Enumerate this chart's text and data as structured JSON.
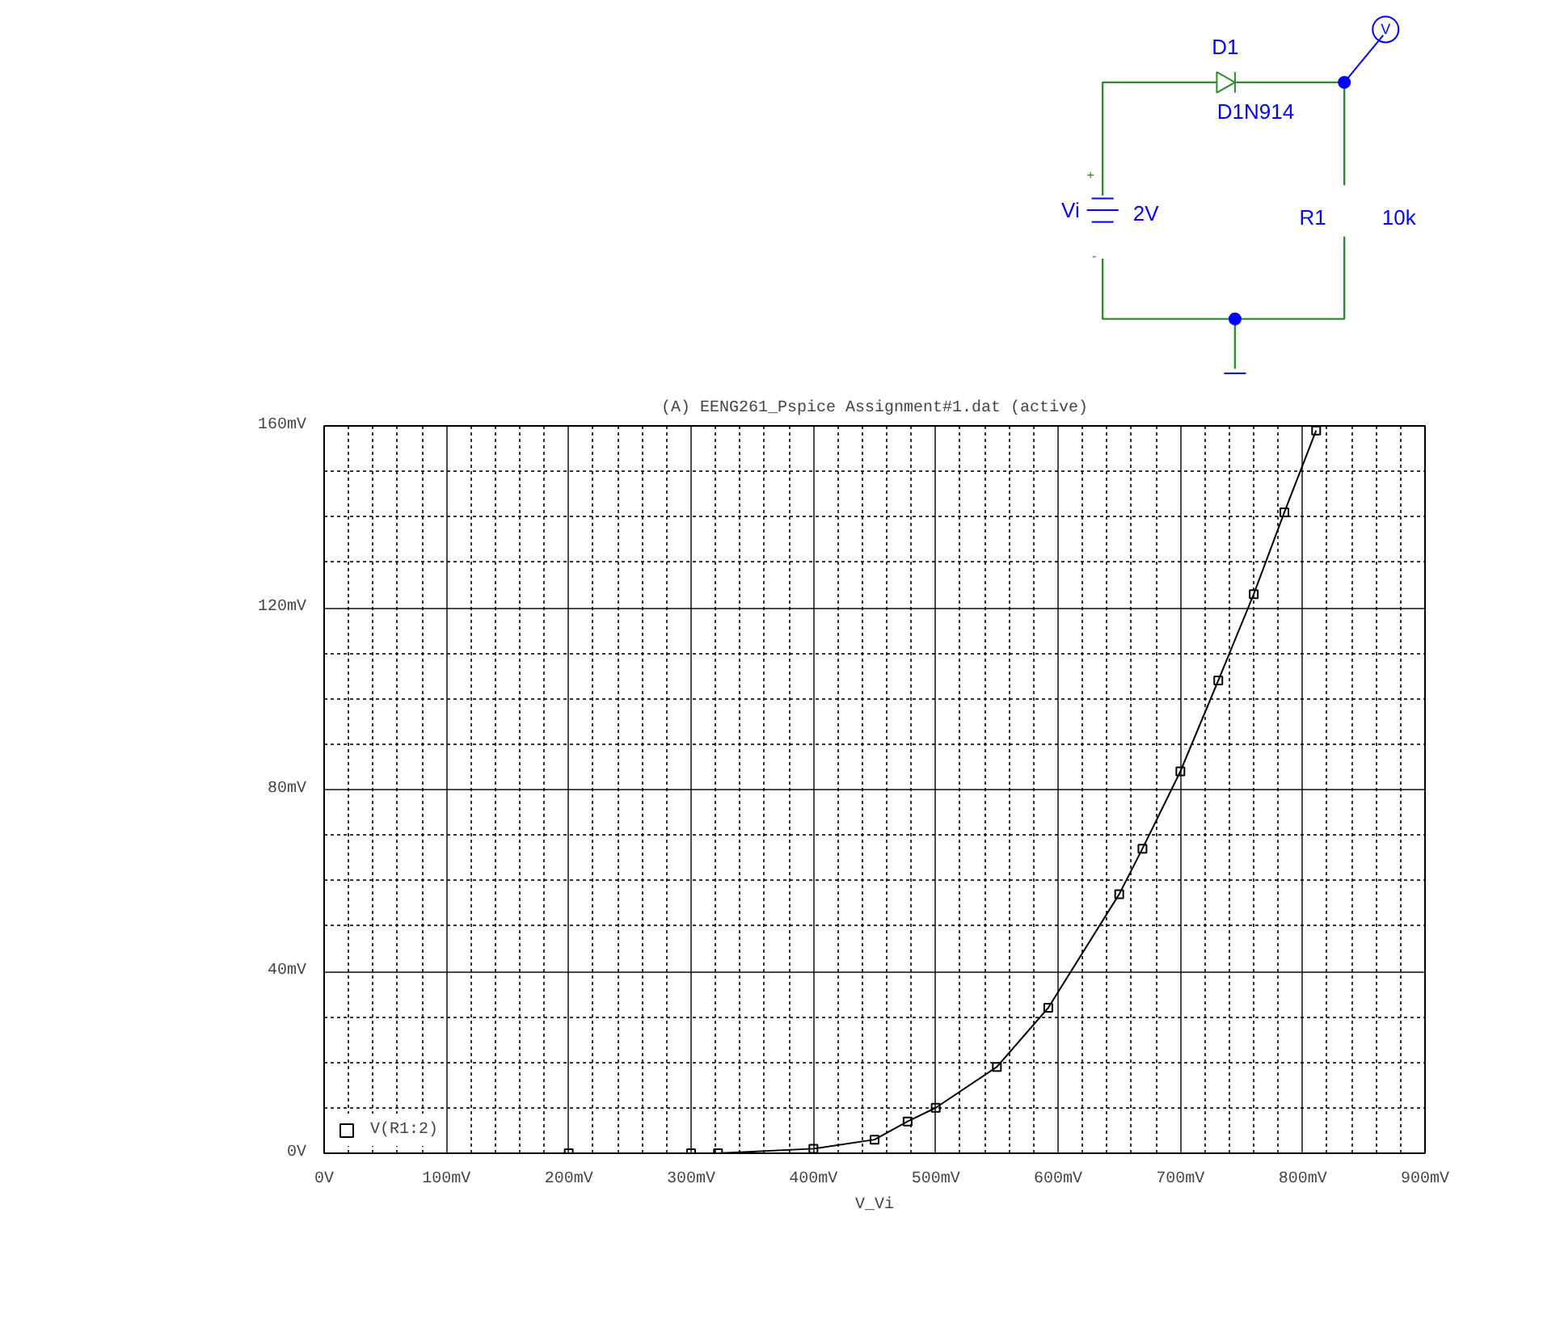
{
  "chart_data": {
    "type": "line",
    "title": "(A) EENG261_Pspice Assignment#1.dat (active)",
    "xlabel": "V_Vi",
    "annotations": [
      "D1",
      "D1N914",
      "Vi",
      "2V",
      "R1",
      "10k",
      "V",
      "+",
      "-"
    ],
    "x": [
      200,
      300,
      322,
      400,
      450,
      477,
      500,
      550,
      592,
      650,
      669,
      700,
      731,
      760,
      785,
      811
    ],
    "series": [
      {
        "name": "V(R1:2)",
        "color": "#000000",
        "values": [
          0,
          0,
          0,
          1,
          3,
          7,
          10,
          19,
          32,
          57,
          67,
          84,
          104,
          123,
          141,
          159
        ]
      }
    ],
    "xlim": [
      0,
      900
    ],
    "ylim": [
      0,
      160
    ],
    "xticks": [
      {
        "value": 0,
        "label": "0V"
      },
      {
        "value": 100,
        "label": "100mV"
      },
      {
        "value": 200,
        "label": "200mV"
      },
      {
        "value": 300,
        "label": "300mV"
      },
      {
        "value": 400,
        "label": "400mV"
      },
      {
        "value": 500,
        "label": "500mV"
      },
      {
        "value": 600,
        "label": "600mV"
      },
      {
        "value": 700,
        "label": "700mV"
      },
      {
        "value": 800,
        "label": "800mV"
      },
      {
        "value": 900,
        "label": "900mV"
      }
    ],
    "yticks": [
      {
        "value": 0,
        "label": "0V"
      },
      {
        "value": 40,
        "label": "40mV"
      },
      {
        "value": 80,
        "label": "80mV"
      },
      {
        "value": 120,
        "label": "120mV"
      },
      {
        "value": 160,
        "label": "160mV"
      }
    ],
    "grid": true,
    "legend": "bottom left",
    "marker": "square",
    "line_style": "solid"
  }
}
